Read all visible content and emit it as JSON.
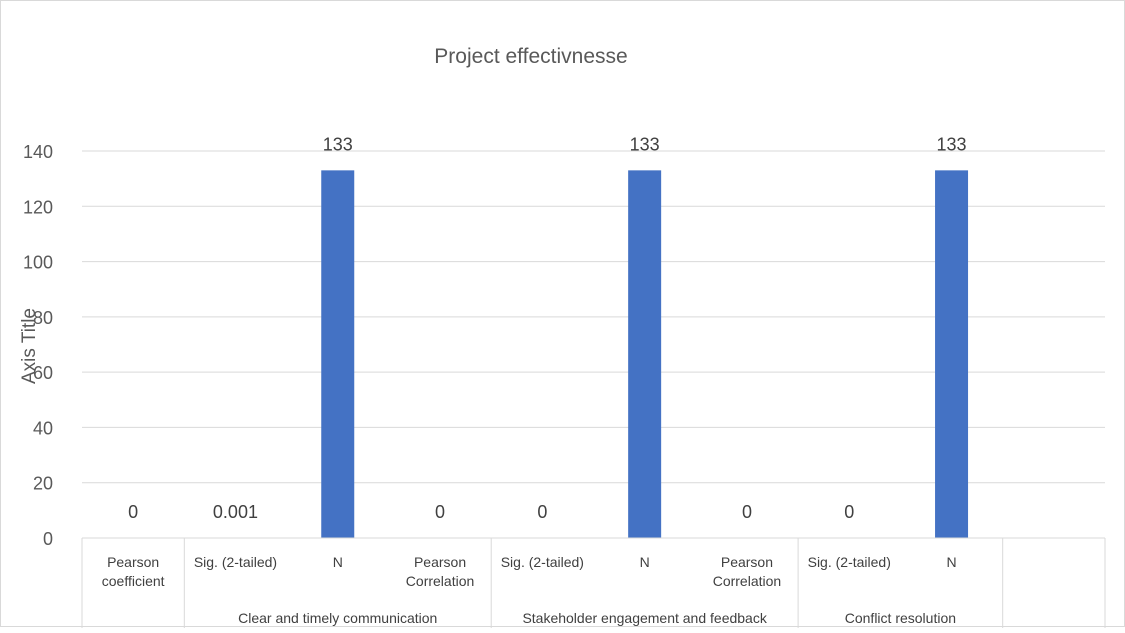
{
  "chart_data": {
    "type": "bar",
    "title": "Project effectivnesse",
    "ylabel": "Axis Title",
    "ylim": [
      0,
      140
    ],
    "yticks": [
      0,
      20,
      40,
      60,
      80,
      100,
      120,
      140
    ],
    "grid": true,
    "legend": "none",
    "bar_color": "#4472C4",
    "categories": [
      "Pearson coefficient",
      "Sig. (2-tailed)",
      "N",
      "Pearson Correlation",
      "Sig. (2-tailed)",
      "N",
      "Pearson Correlation",
      "Sig. (2-tailed)",
      "N",
      ""
    ],
    "values": [
      0,
      0.001,
      133,
      0,
      0,
      133,
      0,
      0,
      133,
      null
    ],
    "data_labels": [
      "0",
      "0.001",
      "133",
      "0",
      "0",
      "133",
      "0",
      "0",
      "133",
      ""
    ],
    "groups": [
      {
        "label": "",
        "members": [
          "Pearson coefficient"
        ]
      },
      {
        "label": "Clear and timely communication",
        "members": [
          "Sig. (2-tailed)",
          "N",
          "Pearson Correlation"
        ]
      },
      {
        "label": "Stakeholder engagement and feedback",
        "members": [
          "Sig. (2-tailed)",
          "N",
          "Pearson Correlation"
        ]
      },
      {
        "label": "Conflict resolution",
        "members": [
          "Sig. (2-tailed)",
          "N"
        ]
      },
      {
        "label": "",
        "members": [
          ""
        ]
      }
    ]
  }
}
